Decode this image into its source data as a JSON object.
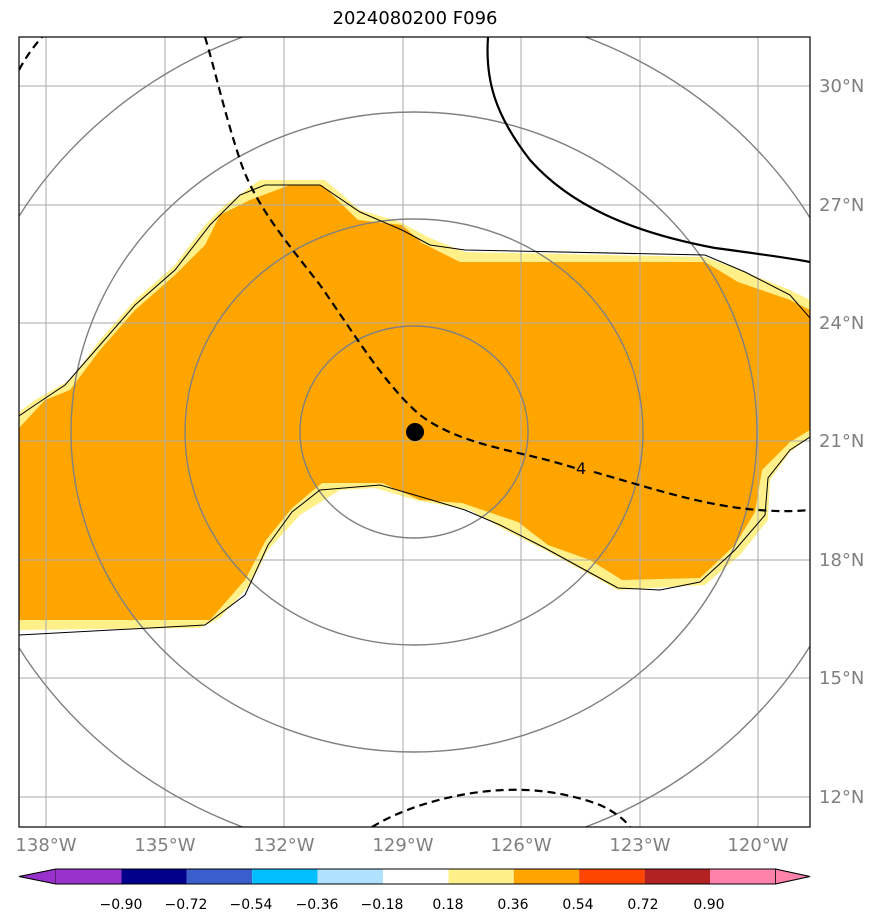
{
  "title": "2024080200 F096",
  "map": {
    "lon_labels": [
      "138°W",
      "135°W",
      "132°W",
      "129°W",
      "126°W",
      "123°W",
      "120°W"
    ],
    "lat_labels": [
      "30°N",
      "27°N",
      "24°N",
      "21°N",
      "18°N",
      "15°N",
      "12°N"
    ],
    "contour_label": "4",
    "center_marker": "storm-center"
  },
  "colorbar": {
    "tick_labels": [
      "−0.90",
      "−0.72",
      "−0.54",
      "−0.36",
      "−0.18",
      "0.18",
      "0.36",
      "0.54",
      "0.72",
      "0.90"
    ],
    "colors": [
      "#9932cc",
      "#00008b",
      "#3a5fcd",
      "#00bfff",
      "#b0e2ff",
      "#ffffff",
      "#fff08a",
      "#ffa500",
      "#ff4500",
      "#b22222",
      "#ff82ab"
    ]
  },
  "colors": {
    "fill_main": "#ffa500",
    "fill_edge": "#fff08a",
    "grid": "#aaaaaa",
    "rings": "#808080"
  }
}
